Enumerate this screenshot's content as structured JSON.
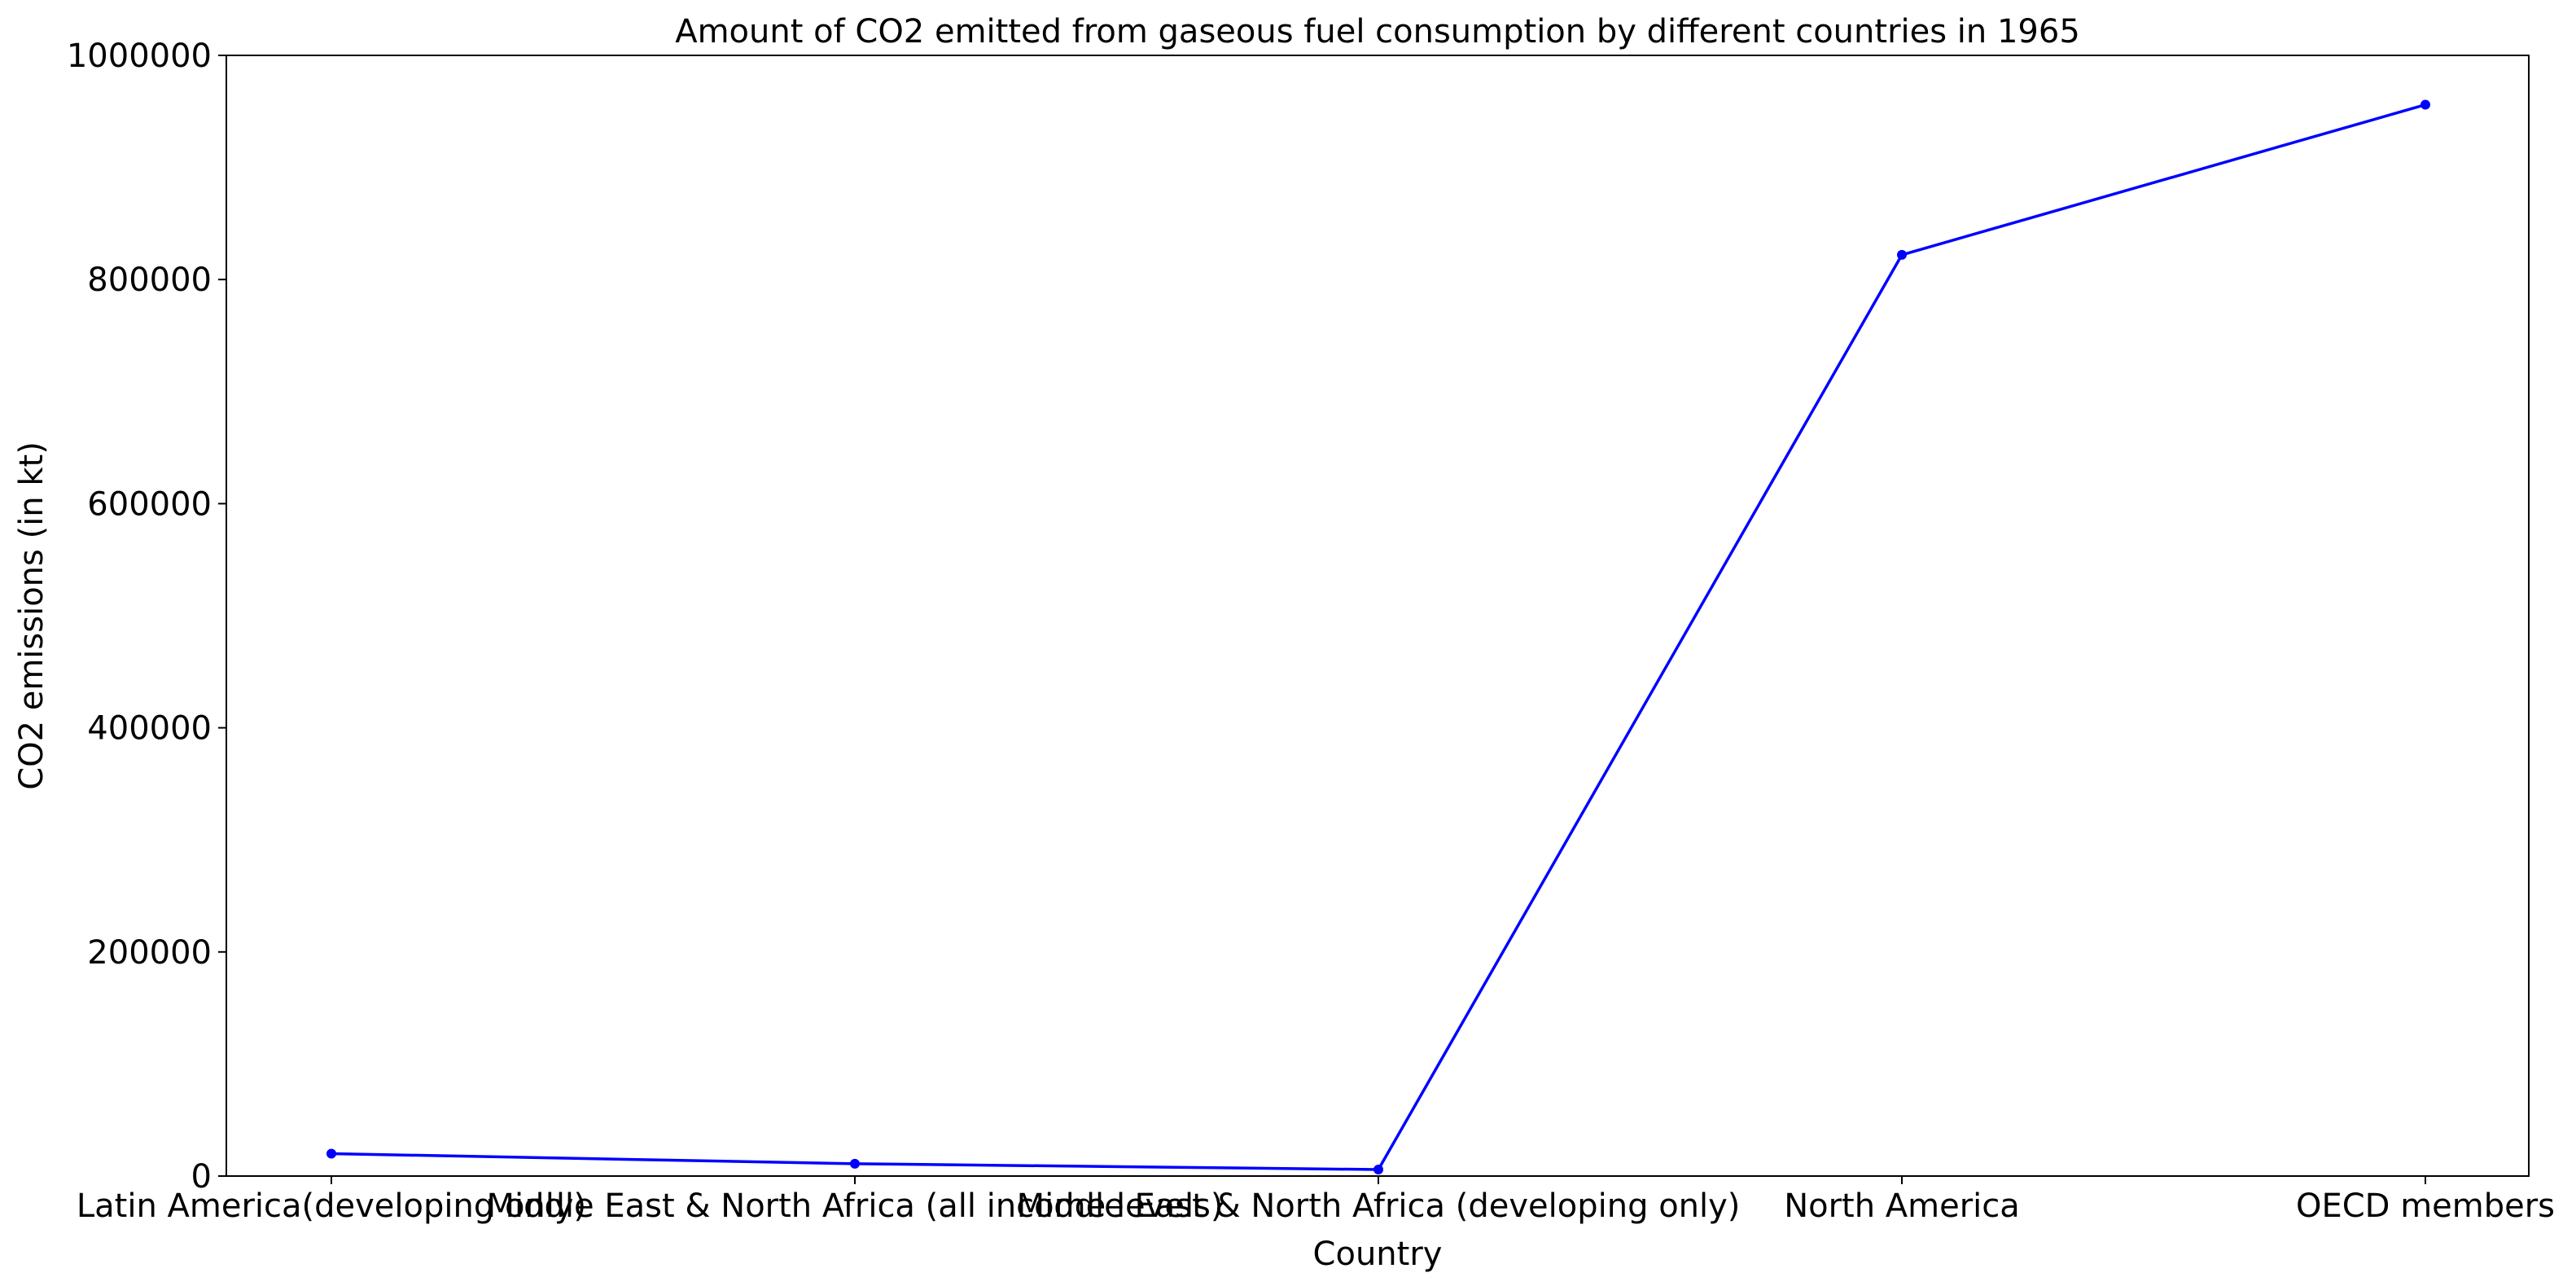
{
  "chart_data": {
    "type": "line",
    "title": "Amount of CO2 emitted from gaseous fuel consumption by different countries in 1965",
    "xlabel": "Country",
    "ylabel": "CO2 emissions (in kt)",
    "categories": [
      "Latin America(developing only)",
      "Middle East & North Africa (all income levels)",
      "Middle East & North Africa (developing only)",
      "North America",
      "OECD members"
    ],
    "series": [
      {
        "values": [
          20000,
          11000,
          5800,
          822000,
          956000
        ],
        "color": "#0000ff"
      }
    ],
    "ylim": [
      0,
      1000000
    ],
    "yticks": [
      0,
      200000,
      400000,
      600000,
      800000,
      1000000
    ],
    "ytick_labels": [
      "0",
      "200000",
      "400000",
      "600000",
      "800000",
      "1000000"
    ],
    "grid": false,
    "legend": "none"
  }
}
